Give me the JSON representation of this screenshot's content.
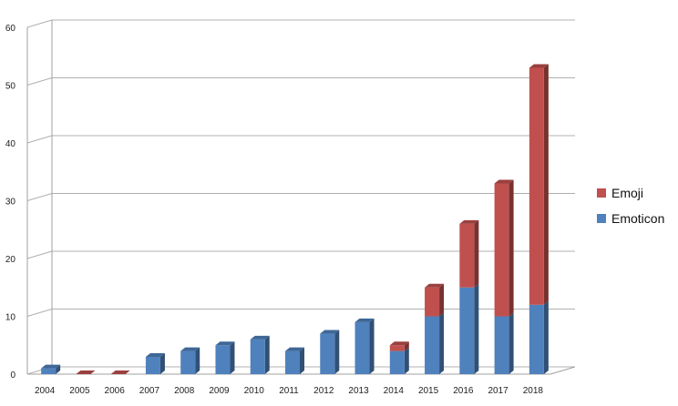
{
  "chart_data": {
    "type": "bar",
    "stacked": true,
    "title": "",
    "xlabel": "",
    "ylabel": "",
    "categories": [
      "2004",
      "2005",
      "2006",
      "2007",
      "2008",
      "2009",
      "2010",
      "2011",
      "2012",
      "2013",
      "2014",
      "2015",
      "2016",
      "2017",
      "2018"
    ],
    "series": [
      {
        "name": "Emoticon",
        "color": "#4f81bd",
        "values": [
          1,
          0,
          0,
          3,
          4,
          5,
          6,
          4,
          7,
          9,
          4,
          10,
          15,
          10,
          12
        ]
      },
      {
        "name": "Emoji",
        "color": "#c0504d",
        "values": [
          0,
          0,
          0,
          0,
          0,
          0,
          0,
          0,
          0,
          0,
          1,
          5,
          11,
          23,
          41
        ]
      }
    ],
    "ylim": [
      0,
      60
    ],
    "yticks": [
      0,
      10,
      20,
      30,
      40,
      50,
      60
    ],
    "grid": true,
    "legend_position": "right",
    "legend_order": [
      "Emoji",
      "Emoticon"
    ]
  }
}
